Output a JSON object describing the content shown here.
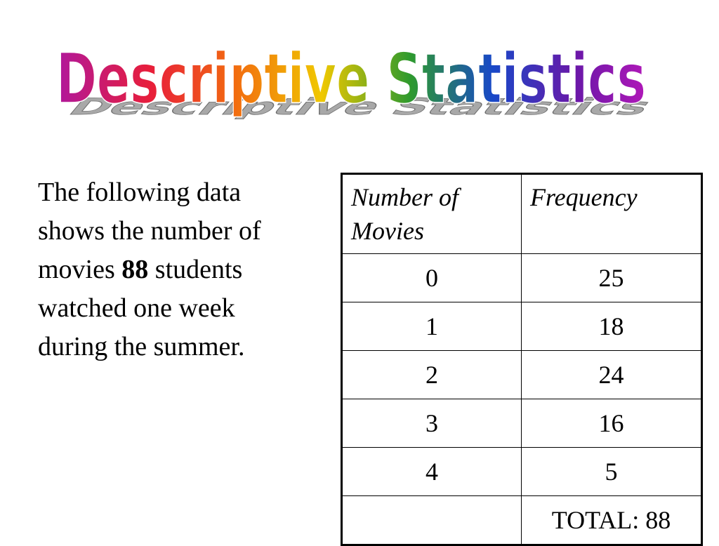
{
  "title": "Descriptive Statistics",
  "colors": {
    "gradient": [
      "#b0189c",
      "#e81e3a",
      "#f26a10",
      "#f0c800",
      "#2e9a2e",
      "#1848c8",
      "#6a18a8",
      "#b018b8"
    ],
    "shadow": "#a6a6a6",
    "table_border": "#000000",
    "text": "#000000"
  },
  "intro": {
    "before": "The following data shows the number of movies ",
    "emphasis": "88",
    "after": " students watched one week during the summer."
  },
  "table": {
    "headers": [
      "Number of Movies",
      "Frequency"
    ],
    "rows": [
      [
        "0",
        "25"
      ],
      [
        "1",
        "18"
      ],
      [
        "2",
        "24"
      ],
      [
        "3",
        "16"
      ],
      [
        "4",
        "5"
      ],
      [
        "",
        "TOTAL: 88"
      ]
    ]
  }
}
